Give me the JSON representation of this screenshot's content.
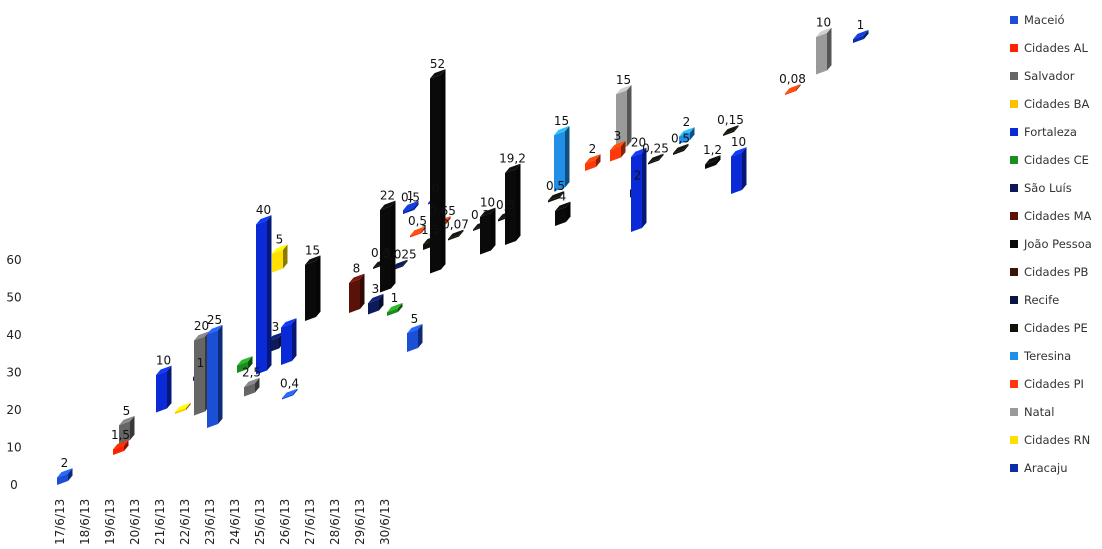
{
  "chart_data": {
    "type": "bar",
    "title": "",
    "xlabel": "",
    "ylabel": "",
    "ylim": [
      0,
      60
    ],
    "yticks": [
      "0",
      "10",
      "20",
      "30",
      "40",
      "50",
      "60"
    ],
    "categories": [
      "17/6/13",
      "18/6/13",
      "19/6/13",
      "20/6/13",
      "21/6/13",
      "22/6/13",
      "23/6/13",
      "24/6/13",
      "25/6/13",
      "26/6/13",
      "27/6/13",
      "28/6/13",
      "29/6/13",
      "30/6/13"
    ],
    "series": [
      {
        "name": "Maceió",
        "color": "#1a4fd6",
        "values": [
          null,
          null,
          null,
          null,
          null,
          null,
          null,
          null,
          null,
          null,
          null,
          null,
          null,
          null
        ]
      },
      {
        "name": "Cidades AL",
        "color": "#ff2200",
        "values": [
          null,
          null,
          null,
          null,
          null,
          null,
          null,
          null,
          null,
          null,
          null,
          null,
          null,
          null
        ]
      },
      {
        "name": "Salvador",
        "color": "#666666",
        "values": [
          null,
          null,
          null,
          null,
          null,
          null,
          null,
          null,
          null,
          null,
          null,
          null,
          null,
          null
        ]
      },
      {
        "name": "Cidades BA",
        "color": "#ffc000",
        "values": [
          null,
          null,
          null,
          null,
          null,
          null,
          null,
          null,
          null,
          null,
          null,
          null,
          null,
          null
        ]
      },
      {
        "name": "Fortaleza",
        "color": "#0a2ad8",
        "values": [
          null,
          null,
          null,
          null,
          null,
          null,
          null,
          null,
          null,
          null,
          null,
          null,
          null,
          null
        ]
      },
      {
        "name": "Cidades CE",
        "color": "#1e8b1e",
        "values": [
          null,
          null,
          null,
          null,
          null,
          null,
          null,
          null,
          null,
          null,
          null,
          null,
          null,
          null
        ]
      },
      {
        "name": "São Luís",
        "color": "#0d1a5a",
        "values": [
          null,
          null,
          null,
          null,
          null,
          null,
          null,
          null,
          null,
          null,
          null,
          null,
          null,
          null
        ]
      },
      {
        "name": "Cidades MA",
        "color": "#5a1208",
        "values": [
          null,
          null,
          null,
          null,
          null,
          null,
          null,
          null,
          null,
          null,
          null,
          null,
          null,
          null
        ]
      },
      {
        "name": "João Pessoa",
        "color": "#0a0a0a",
        "values": [
          null,
          null,
          null,
          null,
          null,
          null,
          null,
          null,
          null,
          null,
          null,
          null,
          null,
          null
        ]
      },
      {
        "name": "Cidades PB",
        "color": "#3a1408",
        "values": [
          null,
          null,
          null,
          null,
          null,
          null,
          null,
          null,
          null,
          null,
          null,
          null,
          null,
          null
        ]
      },
      {
        "name": "Recife",
        "color": "#0a1540",
        "values": [
          null,
          null,
          null,
          null,
          null,
          null,
          null,
          null,
          null,
          null,
          null,
          null,
          null,
          null
        ]
      },
      {
        "name": "Cidades PE",
        "color": "#10120a",
        "values": [
          null,
          null,
          null,
          null,
          null,
          null,
          null,
          null,
          null,
          null,
          null,
          null,
          null,
          null
        ]
      },
      {
        "name": "Teresina",
        "color": "#1f8fe8",
        "values": [
          null,
          null,
          null,
          null,
          null,
          null,
          null,
          null,
          null,
          null,
          null,
          null,
          null,
          null
        ]
      },
      {
        "name": "Cidades PI",
        "color": "#ff3a0a",
        "values": [
          null,
          null,
          null,
          null,
          null,
          null,
          null,
          null,
          null,
          null,
          null,
          null,
          null,
          null
        ]
      },
      {
        "name": "Natal",
        "color": "#9a9a9a",
        "values": [
          null,
          null,
          null,
          null,
          null,
          null,
          null,
          null,
          null,
          null,
          null,
          null,
          null,
          null
        ]
      },
      {
        "name": "Cidades RN",
        "color": "#ffe000",
        "values": [
          null,
          null,
          null,
          null,
          null,
          null,
          null,
          null,
          null,
          null,
          null,
          null,
          null,
          null
        ]
      },
      {
        "name": "Aracaju",
        "color": "#0d2ea8",
        "values": [
          null,
          null,
          null,
          null,
          null,
          null,
          null,
          null,
          null,
          null,
          null,
          null,
          null,
          null
        ]
      }
    ],
    "points": [
      {
        "series": 0,
        "cat": 0,
        "value": 2,
        "label": "2"
      },
      {
        "series": 1,
        "cat": 2,
        "value": 1.5,
        "label": "1,5"
      },
      {
        "series": 2,
        "cat": 2,
        "value": 5,
        "label": "5"
      },
      {
        "series": 4,
        "cat": 3,
        "value": 10,
        "label": "10"
      },
      {
        "series": 3,
        "cat": 4,
        "value": 0.5,
        "label": ""
      },
      {
        "series": 6,
        "cat": 4,
        "value": 1,
        "label": "1"
      },
      {
        "series": 2,
        "cat": 5,
        "value": 20,
        "label": "20"
      },
      {
        "series": 15,
        "cat": 5,
        "value": 5,
        "label": "5"
      },
      {
        "series": 5,
        "cat": 6,
        "value": 2,
        "label": ""
      },
      {
        "series": 0,
        "cat": 6,
        "value": 25,
        "label": "25"
      },
      {
        "series": 4,
        "cat": 7,
        "value": 40,
        "label": "40"
      },
      {
        "series": 6,
        "cat": 7,
        "value": 3,
        "label": "3"
      },
      {
        "series": 2,
        "cat": 7,
        "value": 2.5,
        "label": "2,5"
      },
      {
        "series": 8,
        "cat": 8,
        "value": 15,
        "label": "15"
      },
      {
        "series": 4,
        "cat": 8,
        "value": 10,
        "label": ""
      },
      {
        "series": 0,
        "cat": 9,
        "value": 0.4,
        "label": "0,4"
      },
      {
        "series": 16,
        "cat": 10,
        "value": 1,
        "label": "1"
      },
      {
        "series": 11,
        "cat": 10,
        "value": 0.3,
        "label": "0,3"
      },
      {
        "series": 7,
        "cat": 10,
        "value": 8,
        "label": "8"
      },
      {
        "series": 16,
        "cat": 10,
        "value": 0.5,
        "label": "0,5"
      },
      {
        "series": 8,
        "cat": 11,
        "value": 22,
        "label": "22"
      },
      {
        "series": 6,
        "cat": 11,
        "value": 3,
        "label": "3"
      },
      {
        "series": 10,
        "cat": 11,
        "value": 0.025,
        "label": "0,025"
      },
      {
        "series": 13,
        "cat": 11,
        "value": 0.5,
        "label": "0,5"
      },
      {
        "series": 16,
        "cat": 11,
        "value": 0,
        "label": "0"
      },
      {
        "series": 5,
        "cat": 12,
        "value": 1,
        "label": "1"
      },
      {
        "series": 13,
        "cat": 12,
        "value": 0.65,
        "label": "0,65"
      },
      {
        "series": 11,
        "cat": 12,
        "value": 1.5,
        "label": "1,5"
      },
      {
        "series": 8,
        "cat": 13,
        "value": 52,
        "label": "52"
      },
      {
        "series": 11,
        "cat": 13,
        "value": 0.07,
        "label": "0,07"
      },
      {
        "series": 0,
        "cat": 14,
        "value": 5,
        "label": "5"
      },
      {
        "series": 11,
        "cat": 14,
        "value": 0.3,
        "label": "0,3"
      },
      {
        "series": 11,
        "cat": 15,
        "value": 0.5,
        "label": "0,5"
      },
      {
        "series": 8,
        "cat": 15,
        "value": 10,
        "label": "10"
      },
      {
        "series": 8,
        "cat": 16,
        "value": 19.2,
        "label": "19,2"
      },
      {
        "series": 12,
        "cat": 17,
        "value": 15,
        "label": "15"
      },
      {
        "series": 11,
        "cat": 17,
        "value": 0.5,
        "label": "0,5"
      },
      {
        "series": 13,
        "cat": 18,
        "value": 2,
        "label": "2"
      },
      {
        "series": 8,
        "cat": 18,
        "value": 4,
        "label": "4"
      },
      {
        "series": 13,
        "cat": 19,
        "value": 3,
        "label": "3"
      },
      {
        "series": 14,
        "cat": 19,
        "value": 15,
        "label": "15"
      },
      {
        "series": 11,
        "cat": 21,
        "value": 0.25,
        "label": "0,25"
      },
      {
        "series": 8,
        "cat": 21,
        "value": 2,
        "label": "2"
      },
      {
        "series": 4,
        "cat": 22,
        "value": 20,
        "label": "20"
      },
      {
        "series": 11,
        "cat": 22,
        "value": 0.5,
        "label": "0,5"
      },
      {
        "series": 12,
        "cat": 22,
        "value": 2,
        "label": "2"
      },
      {
        "series": 8,
        "cat": 24,
        "value": 1.2,
        "label": "1,2"
      },
      {
        "series": 11,
        "cat": 24,
        "value": 0.15,
        "label": "0,15"
      },
      {
        "series": 4,
        "cat": 26,
        "value": 10,
        "label": "10"
      },
      {
        "series": 13,
        "cat": 26,
        "value": 0.08,
        "label": "0,08"
      },
      {
        "series": 14,
        "cat": 27,
        "value": 10,
        "label": "10"
      },
      {
        "series": 16,
        "cat": 28,
        "value": 1,
        "label": "1"
      }
    ],
    "legend": "right",
    "grid": false
  }
}
